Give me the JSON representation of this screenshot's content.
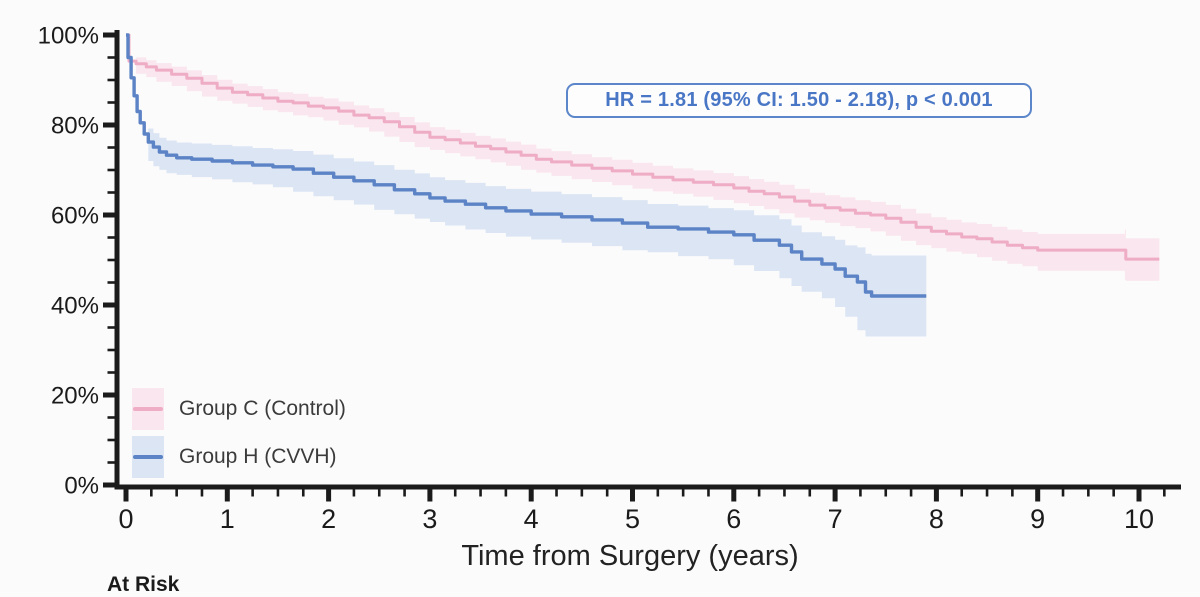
{
  "page": {
    "background": "#fcfbfb"
  },
  "axes": {
    "xlabel": "Time from Surgery (years)",
    "x_tick_labels": [
      "0",
      "1",
      "2",
      "3",
      "4",
      "5",
      "6",
      "7",
      "8",
      "9",
      "10"
    ],
    "y_tick_labels": [
      "0%",
      "20%",
      "40%",
      "60%",
      "80%",
      "100%"
    ],
    "at_risk_label": "At Risk",
    "axis_color": "#1b1b1b"
  },
  "annotation": {
    "text": "HR = 1.81 (95% CI: 1.50 - 2.18), p < 0.001",
    "text_color": "#4a77c5",
    "border_color": "#5b86ca"
  },
  "legend": {
    "items": [
      {
        "label": "Group C (Control)",
        "line_color": "#efacc5",
        "band_color": "#f9e6ee"
      },
      {
        "label": "Group H (CVVH)",
        "line_color": "#5b83c5",
        "band_color": "#dbe5f4"
      }
    ]
  },
  "chart_data": {
    "type": "line",
    "subtype": "kaplan-meier-step-with-confidence-bands",
    "title": "",
    "xlabel": "Time from Surgery (years)",
    "ylabel": "",
    "xlim": [
      -0.1,
      10.4
    ],
    "ylim": [
      0,
      100
    ],
    "x_major_ticks": [
      0,
      1,
      2,
      3,
      4,
      5,
      6,
      7,
      8,
      9,
      10
    ],
    "x_minor_step": 0.25,
    "x_minor_max": 10.25,
    "y_major_ticks": [
      0,
      20,
      40,
      60,
      80,
      100
    ],
    "y_minor_step": 5,
    "grid": false,
    "legend_position": "lower-left",
    "annotation": "HR = 1.81 (95% CI: 1.50 - 2.18), p < 0.001",
    "series": [
      {
        "name": "Group C (Control)",
        "color": "#efacc5",
        "ci_color": "#f9e6ee",
        "line_width": 3,
        "band_start_x": 0.1,
        "ci_halfwidth_pct": [
          [
            0.05,
            1.4
          ],
          [
            0.5,
            1.7
          ],
          [
            1,
            1.9
          ],
          [
            2,
            2.1
          ],
          [
            3,
            2.2
          ],
          [
            5,
            2.5
          ],
          [
            7,
            2.8
          ],
          [
            8,
            3.1
          ],
          [
            9,
            3.6
          ],
          [
            9.87,
            4.6
          ],
          [
            10.2,
            4.8
          ]
        ],
        "points_pct": [
          [
            0,
            100
          ],
          [
            0.03,
            94.2
          ],
          [
            0.1,
            93.6
          ],
          [
            0.2,
            92.9
          ],
          [
            0.3,
            92.2
          ],
          [
            0.45,
            91.3
          ],
          [
            0.6,
            90.4
          ],
          [
            0.75,
            89.3
          ],
          [
            0.9,
            88.2
          ],
          [
            1.05,
            87.3
          ],
          [
            1.2,
            86.7
          ],
          [
            1.35,
            86.0
          ],
          [
            1.5,
            85.3
          ],
          [
            1.65,
            84.9
          ],
          [
            1.8,
            84.2
          ],
          [
            1.95,
            83.8
          ],
          [
            2.1,
            83.1
          ],
          [
            2.25,
            82.2
          ],
          [
            2.4,
            81.6
          ],
          [
            2.55,
            80.7
          ],
          [
            2.7,
            79.6
          ],
          [
            2.85,
            78.4
          ],
          [
            3.0,
            77.3
          ],
          [
            3.15,
            76.7
          ],
          [
            3.3,
            76.0
          ],
          [
            3.45,
            75.3
          ],
          [
            3.6,
            74.7
          ],
          [
            3.75,
            74.0
          ],
          [
            3.9,
            73.3
          ],
          [
            4.05,
            72.4
          ],
          [
            4.2,
            71.8
          ],
          [
            4.4,
            71.1
          ],
          [
            4.6,
            70.4
          ],
          [
            4.8,
            69.8
          ],
          [
            5.0,
            69.1
          ],
          [
            5.2,
            68.4
          ],
          [
            5.4,
            67.8
          ],
          [
            5.6,
            67.3
          ],
          [
            5.8,
            66.7
          ],
          [
            6.0,
            66.0
          ],
          [
            6.15,
            65.3
          ],
          [
            6.3,
            64.7
          ],
          [
            6.45,
            64.0
          ],
          [
            6.6,
            63.1
          ],
          [
            6.75,
            62.2
          ],
          [
            6.9,
            61.6
          ],
          [
            7.05,
            61.1
          ],
          [
            7.2,
            60.4
          ],
          [
            7.35,
            60.0
          ],
          [
            7.5,
            59.3
          ],
          [
            7.65,
            58.4
          ],
          [
            7.8,
            57.3
          ],
          [
            7.95,
            56.4
          ],
          [
            8.1,
            55.8
          ],
          [
            8.25,
            55.1
          ],
          [
            8.4,
            54.7
          ],
          [
            8.55,
            54.0
          ],
          [
            8.7,
            53.3
          ],
          [
            8.85,
            52.7
          ],
          [
            9.0,
            52.2
          ],
          [
            9.86,
            52.2
          ],
          [
            9.87,
            50.2
          ],
          [
            10.2,
            50.2
          ]
        ]
      },
      {
        "name": "Group H (CVVH)",
        "color": "#5b83c5",
        "ci_color": "#dbe5f4",
        "line_width": 3.4,
        "band_start_x": 0.22,
        "ci_halfwidth_pct": [
          [
            0.2,
            3.0
          ],
          [
            0.5,
            3.4
          ],
          [
            2,
            4.2
          ],
          [
            4,
            5.0
          ],
          [
            5.5,
            5.2
          ],
          [
            6.3,
            5.6
          ],
          [
            6.9,
            6.2
          ],
          [
            7.15,
            7.0
          ],
          [
            7.3,
            8.5
          ],
          [
            7.36,
            9.0
          ],
          [
            7.9,
            9.0
          ]
        ],
        "points_pct": [
          [
            0,
            100
          ],
          [
            0.02,
            95
          ],
          [
            0.05,
            90.5
          ],
          [
            0.08,
            86.5
          ],
          [
            0.11,
            83
          ],
          [
            0.14,
            80.5
          ],
          [
            0.18,
            78
          ],
          [
            0.22,
            76.2
          ],
          [
            0.27,
            75.1
          ],
          [
            0.33,
            74
          ],
          [
            0.4,
            73.3
          ],
          [
            0.5,
            72.7
          ],
          [
            0.65,
            72.4
          ],
          [
            0.85,
            72.0
          ],
          [
            1.05,
            71.6
          ],
          [
            1.25,
            71.1
          ],
          [
            1.45,
            70.7
          ],
          [
            1.65,
            70.2
          ],
          [
            1.85,
            69.3
          ],
          [
            2.05,
            68.4
          ],
          [
            2.25,
            67.6
          ],
          [
            2.45,
            66.7
          ],
          [
            2.65,
            65.6
          ],
          [
            2.85,
            64.7
          ],
          [
            3.0,
            63.8
          ],
          [
            3.15,
            63.1
          ],
          [
            3.35,
            62.4
          ],
          [
            3.55,
            61.6
          ],
          [
            3.75,
            60.9
          ],
          [
            4.0,
            60.2
          ],
          [
            4.3,
            59.6
          ],
          [
            4.6,
            58.9
          ],
          [
            4.9,
            58.2
          ],
          [
            5.15,
            57.3
          ],
          [
            5.45,
            56.9
          ],
          [
            5.75,
            56.2
          ],
          [
            6.0,
            55.6
          ],
          [
            6.2,
            54.4
          ],
          [
            6.45,
            53.3
          ],
          [
            6.57,
            51.8
          ],
          [
            6.67,
            50.2
          ],
          [
            6.87,
            49.1
          ],
          [
            7.0,
            48.0
          ],
          [
            7.1,
            46.4
          ],
          [
            7.22,
            45.1
          ],
          [
            7.3,
            42.9
          ],
          [
            7.36,
            42.0
          ],
          [
            7.9,
            42.0
          ]
        ]
      }
    ]
  }
}
